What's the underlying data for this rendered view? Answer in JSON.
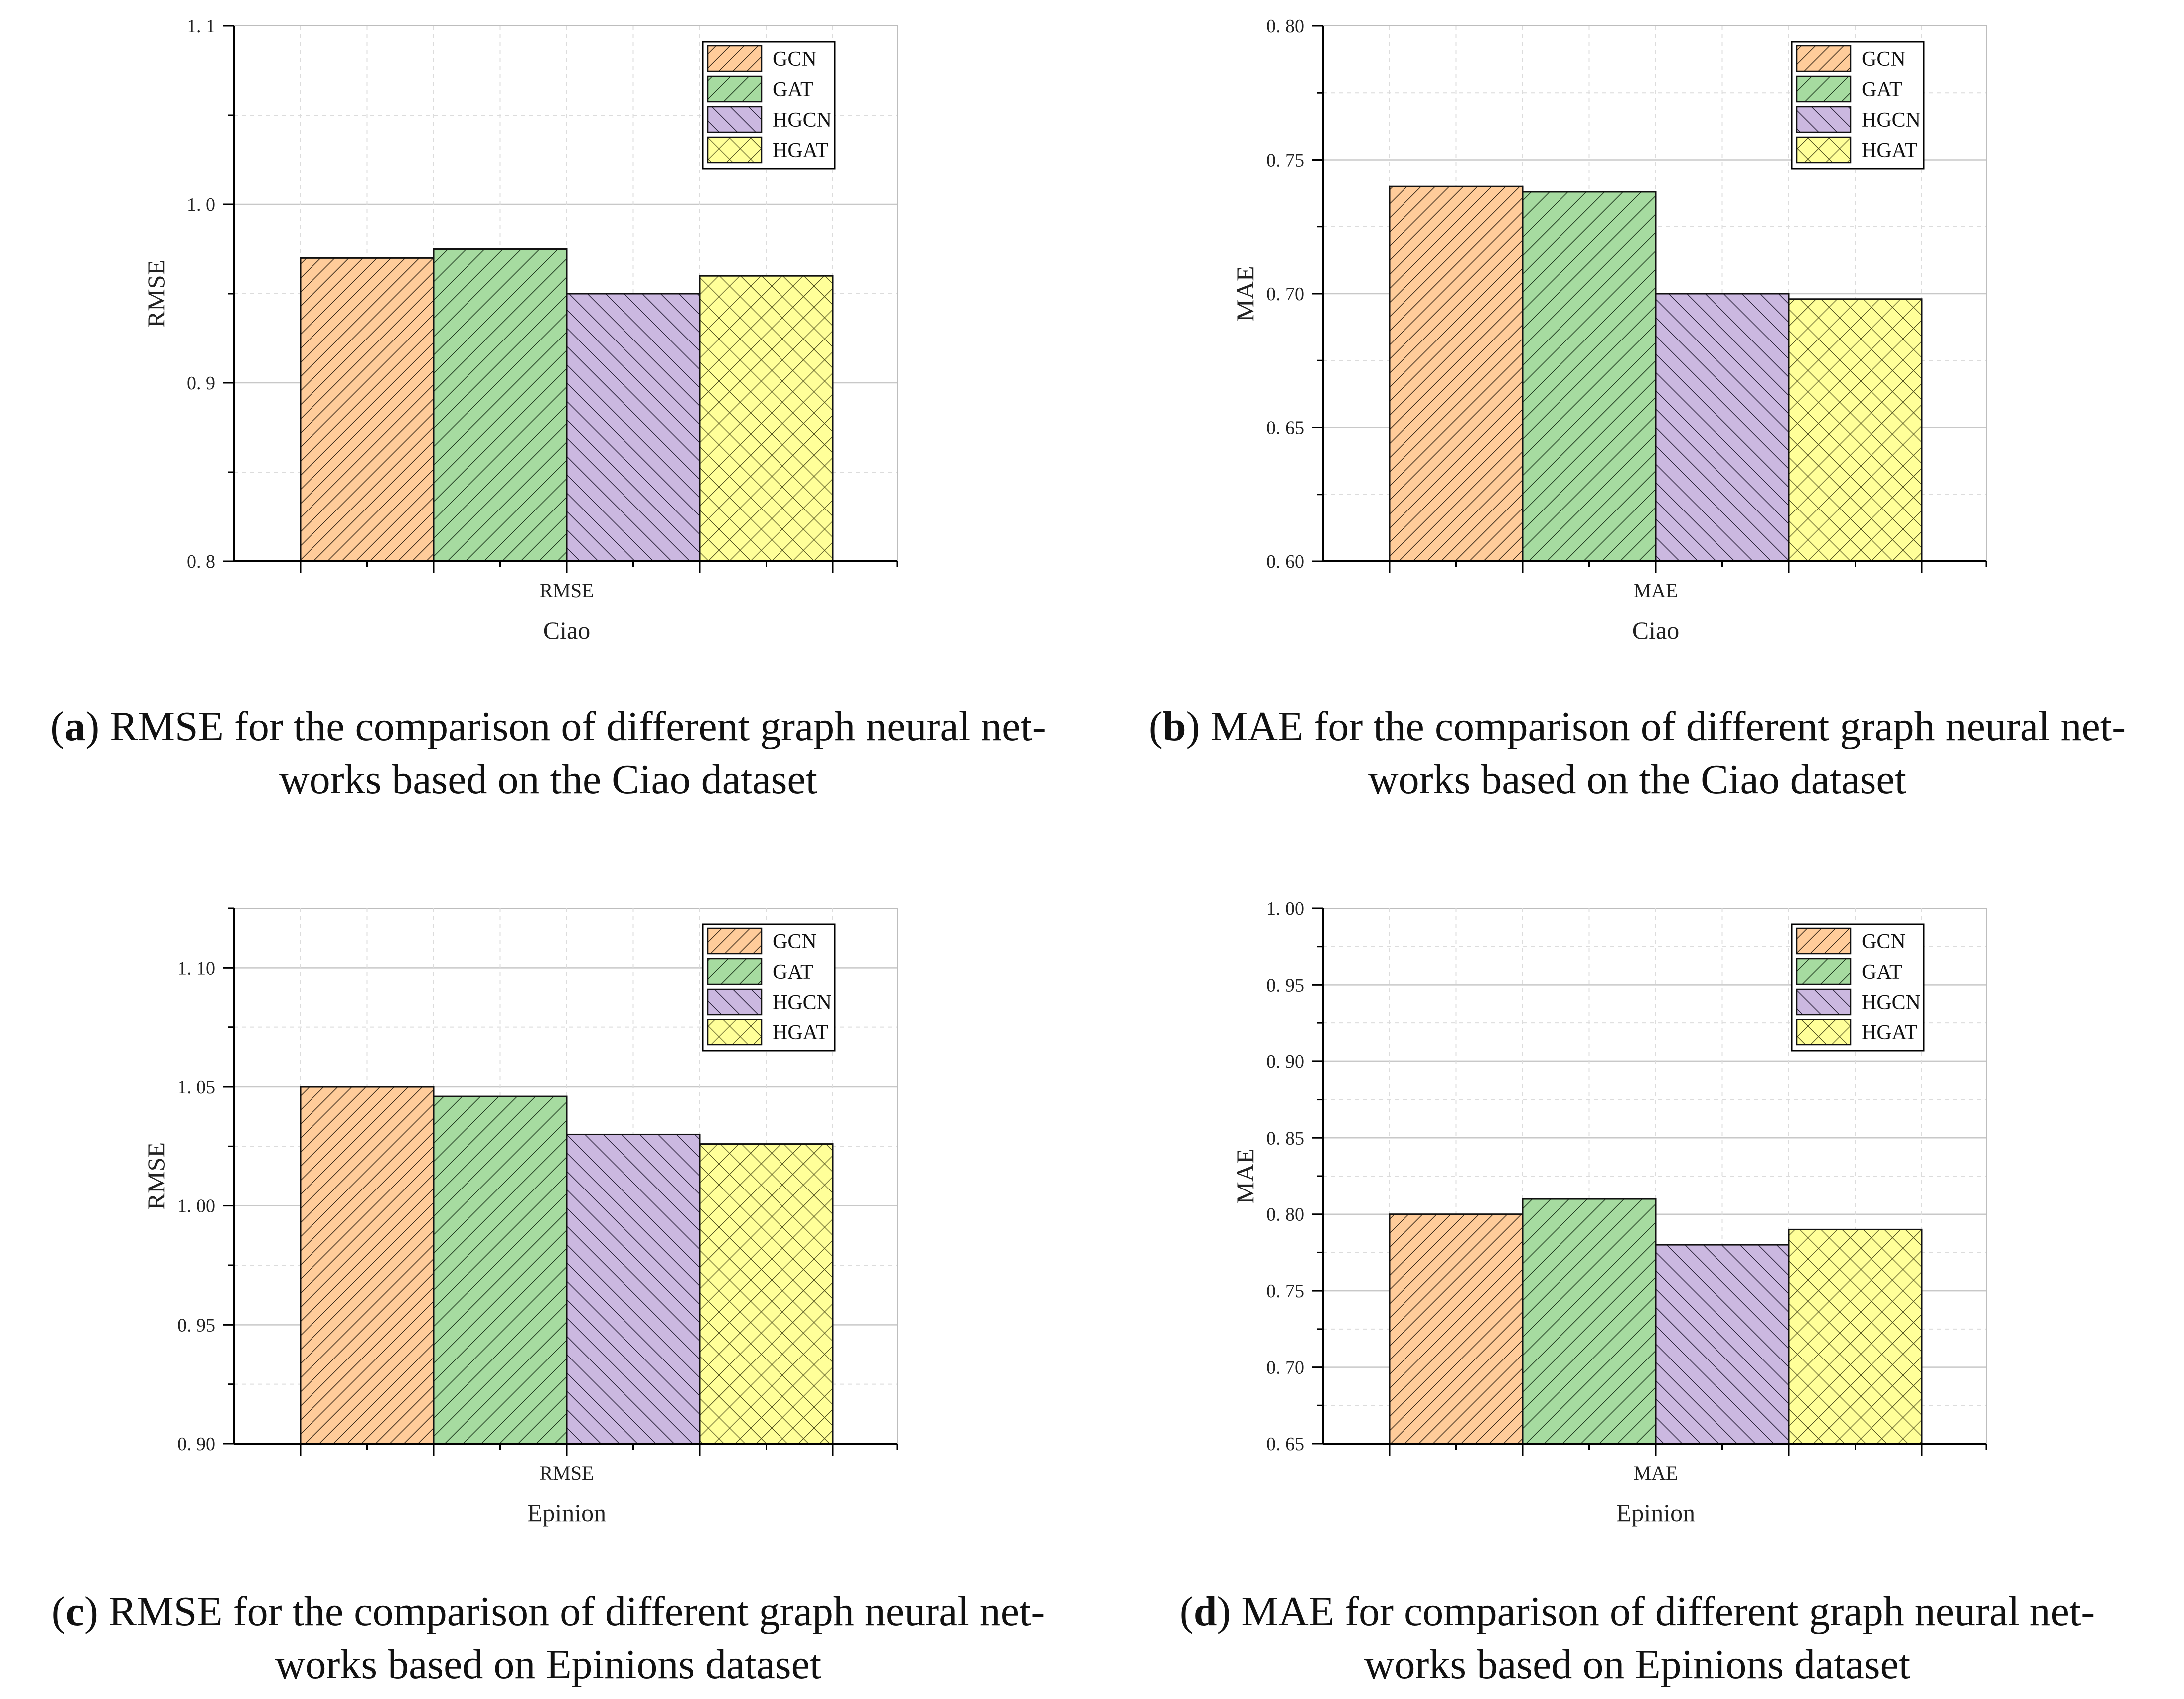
{
  "colors": {
    "GCN": "#ffcc9a",
    "GAT": "#a6dba0",
    "HGCN": "#cbb8e0",
    "HGAT": "#ffff99",
    "grid": "#cfcfcf",
    "axis": "#000000"
  },
  "icons": {
    "GCN": "hatch-forward-fine",
    "GAT": "hatch-forward",
    "HGCN": "hatch-backward",
    "HGAT": "hatch-cross"
  },
  "chart_data": [
    {
      "id": "a",
      "type": "bar",
      "categories": [
        "RMSE"
      ],
      "series": [
        {
          "name": "GCN",
          "values": [
            0.97
          ]
        },
        {
          "name": "GAT",
          "values": [
            0.975
          ]
        },
        {
          "name": "HGCN",
          "values": [
            0.95
          ]
        },
        {
          "name": "HGAT",
          "values": [
            0.96
          ]
        }
      ],
      "xlabel": "Ciao",
      "ylabel": "RMSE",
      "ylim": [
        0.8,
        1.1
      ],
      "yticks": [
        "0. 8",
        "0. 9",
        "1. 0",
        "1. 1"
      ],
      "ytick_values": [
        0.8,
        0.9,
        1.0,
        1.1
      ],
      "minor_step": 0.05,
      "legend": "top-right",
      "grid": true
    },
    {
      "id": "b",
      "type": "bar",
      "categories": [
        "MAE"
      ],
      "series": [
        {
          "name": "GCN",
          "values": [
            0.74
          ]
        },
        {
          "name": "GAT",
          "values": [
            0.738
          ]
        },
        {
          "name": "HGCN",
          "values": [
            0.7
          ]
        },
        {
          "name": "HGAT",
          "values": [
            0.698
          ]
        }
      ],
      "xlabel": "Ciao",
      "ylabel": "MAE",
      "ylim": [
        0.6,
        0.8
      ],
      "yticks": [
        "0. 60",
        "0. 65",
        "0. 70",
        "0. 75",
        "0. 80"
      ],
      "ytick_values": [
        0.6,
        0.65,
        0.7,
        0.75,
        0.8
      ],
      "minor_step": 0.025,
      "legend": "top-right",
      "grid": true
    },
    {
      "id": "c",
      "type": "bar",
      "categories": [
        "RMSE"
      ],
      "series": [
        {
          "name": "GCN",
          "values": [
            1.05
          ]
        },
        {
          "name": "GAT",
          "values": [
            1.046
          ]
        },
        {
          "name": "HGCN",
          "values": [
            1.03
          ]
        },
        {
          "name": "HGAT",
          "values": [
            1.026
          ]
        }
      ],
      "xlabel": "Epinion",
      "ylabel": "RMSE",
      "ylim": [
        0.9,
        1.125
      ],
      "yticks": [
        "0. 90",
        "0. 95",
        "1. 00",
        "1. 05",
        "1. 10"
      ],
      "ytick_values": [
        0.9,
        0.95,
        1.0,
        1.05,
        1.1
      ],
      "minor_step": 0.025,
      "legend": "top-right",
      "grid": true
    },
    {
      "id": "d",
      "type": "bar",
      "categories": [
        "MAE"
      ],
      "series": [
        {
          "name": "GCN",
          "values": [
            0.8
          ]
        },
        {
          "name": "GAT",
          "values": [
            0.81
          ]
        },
        {
          "name": "HGCN",
          "values": [
            0.78
          ]
        },
        {
          "name": "HGAT",
          "values": [
            0.79
          ]
        }
      ],
      "xlabel": "Epinion",
      "ylabel": "MAE",
      "ylim": [
        0.65,
        1.0
      ],
      "yticks": [
        "0. 65",
        "0. 70",
        "0. 75",
        "0. 80",
        "0. 85",
        "0. 90",
        "0. 95",
        "1. 00"
      ],
      "ytick_values": [
        0.65,
        0.7,
        0.75,
        0.8,
        0.85,
        0.9,
        0.95,
        1.0
      ],
      "minor_step": 0.025,
      "legend": "top-right",
      "grid": true
    }
  ],
  "captions": {
    "a": {
      "letter": "a",
      "line1": ") RMSE for the comparison of different graph neural net-",
      "line2": "works based on the Ciao dataset"
    },
    "b": {
      "letter": "b",
      "line1": ") MAE for the comparison of different graph neural net-",
      "line2": "works based on the Ciao dataset"
    },
    "c": {
      "letter": "c",
      "line1": ") RMSE for the comparison of different graph neural net-",
      "line2": "works based on Epinions dataset"
    },
    "d": {
      "letter": "d",
      "line1": ") MAE for comparison of different graph neural net-",
      "line2": "works based on Epinions dataset"
    }
  }
}
